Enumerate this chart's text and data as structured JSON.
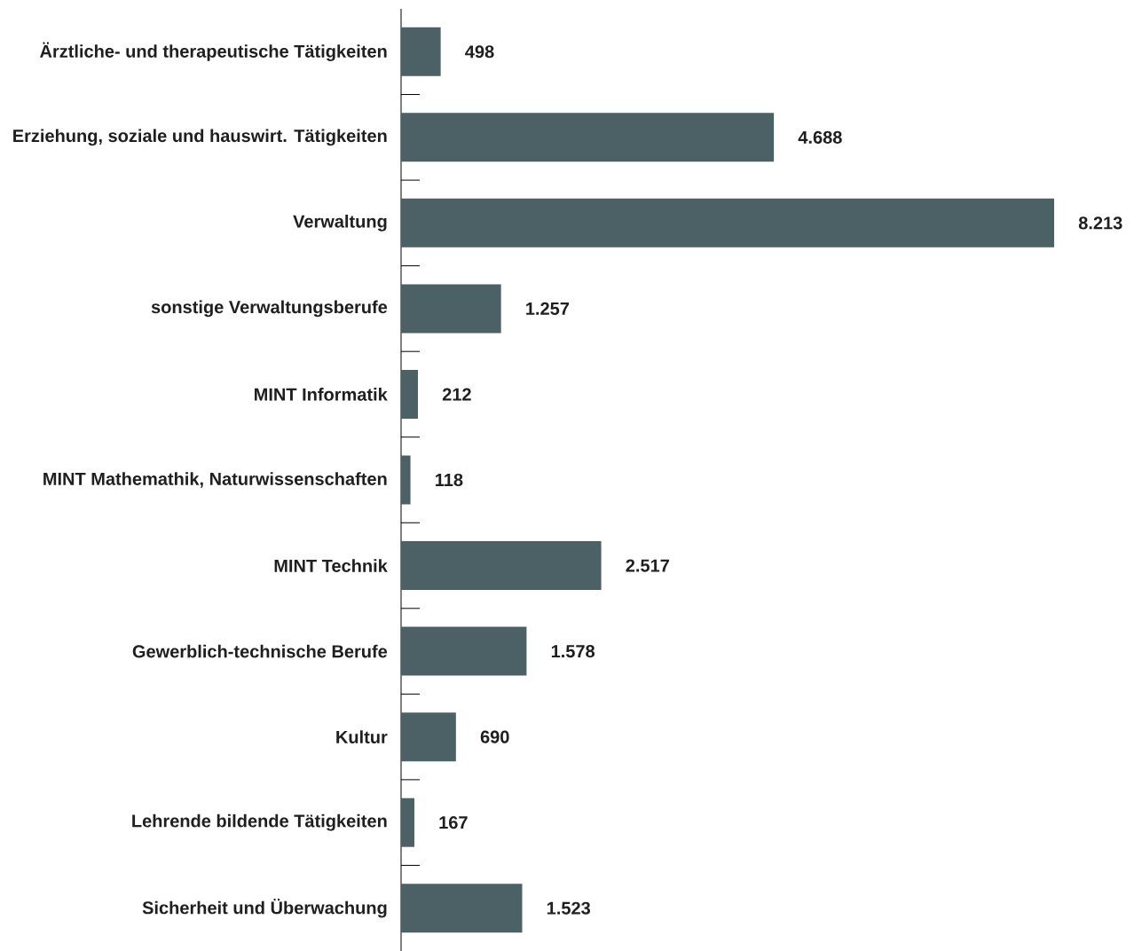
{
  "chart_data": {
    "type": "bar",
    "orientation": "horizontal",
    "categories": [
      "Ärztliche- und therapeutische Tätigkeiten",
      "Erziehung, soziale und hauswirt. Tätigkeiten",
      "Verwaltung",
      "sonstige Verwaltungsberufe",
      "MINT Informatik",
      "MINT Mathemathik, Naturwissenschaften",
      "MINT Technik",
      "Gewerblich-technische Berufe",
      "Kultur",
      "Lehrende bildende Tätigkeiten",
      "Sicherheit und Überwachung"
    ],
    "values": [
      498,
      4688,
      8213,
      1257,
      212,
      118,
      2517,
      1578,
      690,
      167,
      1523
    ],
    "value_labels": [
      "498",
      "4.688",
      "8.213",
      "1.257",
      "212",
      "118",
      "2.517",
      "1.578",
      "690",
      "167",
      "1.523"
    ],
    "color": "#4b6166",
    "tick_labels": "y"
  }
}
